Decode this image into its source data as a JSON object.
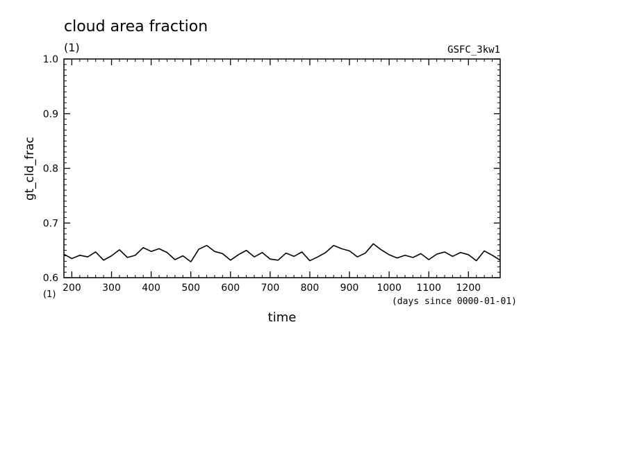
{
  "chart_data": {
    "type": "line",
    "title": "cloud area fraction",
    "units_left": "(1)",
    "run_label": "GSFC_3kw1",
    "ylabel": "gt_cld_frac",
    "xlabel": "time",
    "x_units_left": "(1)",
    "x_units_right": "(days since 0000-01-01)",
    "xlim": [
      180,
      1280
    ],
    "ylim": [
      0.6,
      1.0
    ],
    "x_ticks": [
      200,
      300,
      400,
      500,
      600,
      700,
      800,
      900,
      1000,
      1100,
      1200
    ],
    "y_ticks": [
      "0.6",
      "0.7",
      "0.8",
      "0.9",
      "1.0"
    ],
    "grid": false,
    "series": [
      {
        "color": "#000000",
        "x": [
          180,
          200,
          220,
          240,
          260,
          280,
          300,
          320,
          340,
          360,
          380,
          400,
          420,
          440,
          460,
          480,
          500,
          520,
          540,
          560,
          580,
          600,
          620,
          640,
          660,
          680,
          700,
          720,
          740,
          760,
          780,
          800,
          820,
          840,
          860,
          880,
          900,
          920,
          940,
          960,
          980,
          1000,
          1020,
          1040,
          1060,
          1080,
          1100,
          1120,
          1140,
          1160,
          1180,
          1200,
          1220,
          1240,
          1260,
          1280
        ],
        "y": [
          0.643,
          0.635,
          0.641,
          0.638,
          0.647,
          0.632,
          0.64,
          0.651,
          0.637,
          0.641,
          0.655,
          0.648,
          0.653,
          0.646,
          0.633,
          0.64,
          0.629,
          0.652,
          0.659,
          0.648,
          0.644,
          0.632,
          0.642,
          0.65,
          0.638,
          0.646,
          0.634,
          0.632,
          0.645,
          0.639,
          0.647,
          0.631,
          0.638,
          0.646,
          0.659,
          0.653,
          0.649,
          0.638,
          0.645,
          0.662,
          0.651,
          0.642,
          0.636,
          0.641,
          0.637,
          0.644,
          0.633,
          0.643,
          0.647,
          0.639,
          0.646,
          0.642,
          0.631,
          0.649,
          0.641,
          0.632
        ]
      }
    ]
  }
}
